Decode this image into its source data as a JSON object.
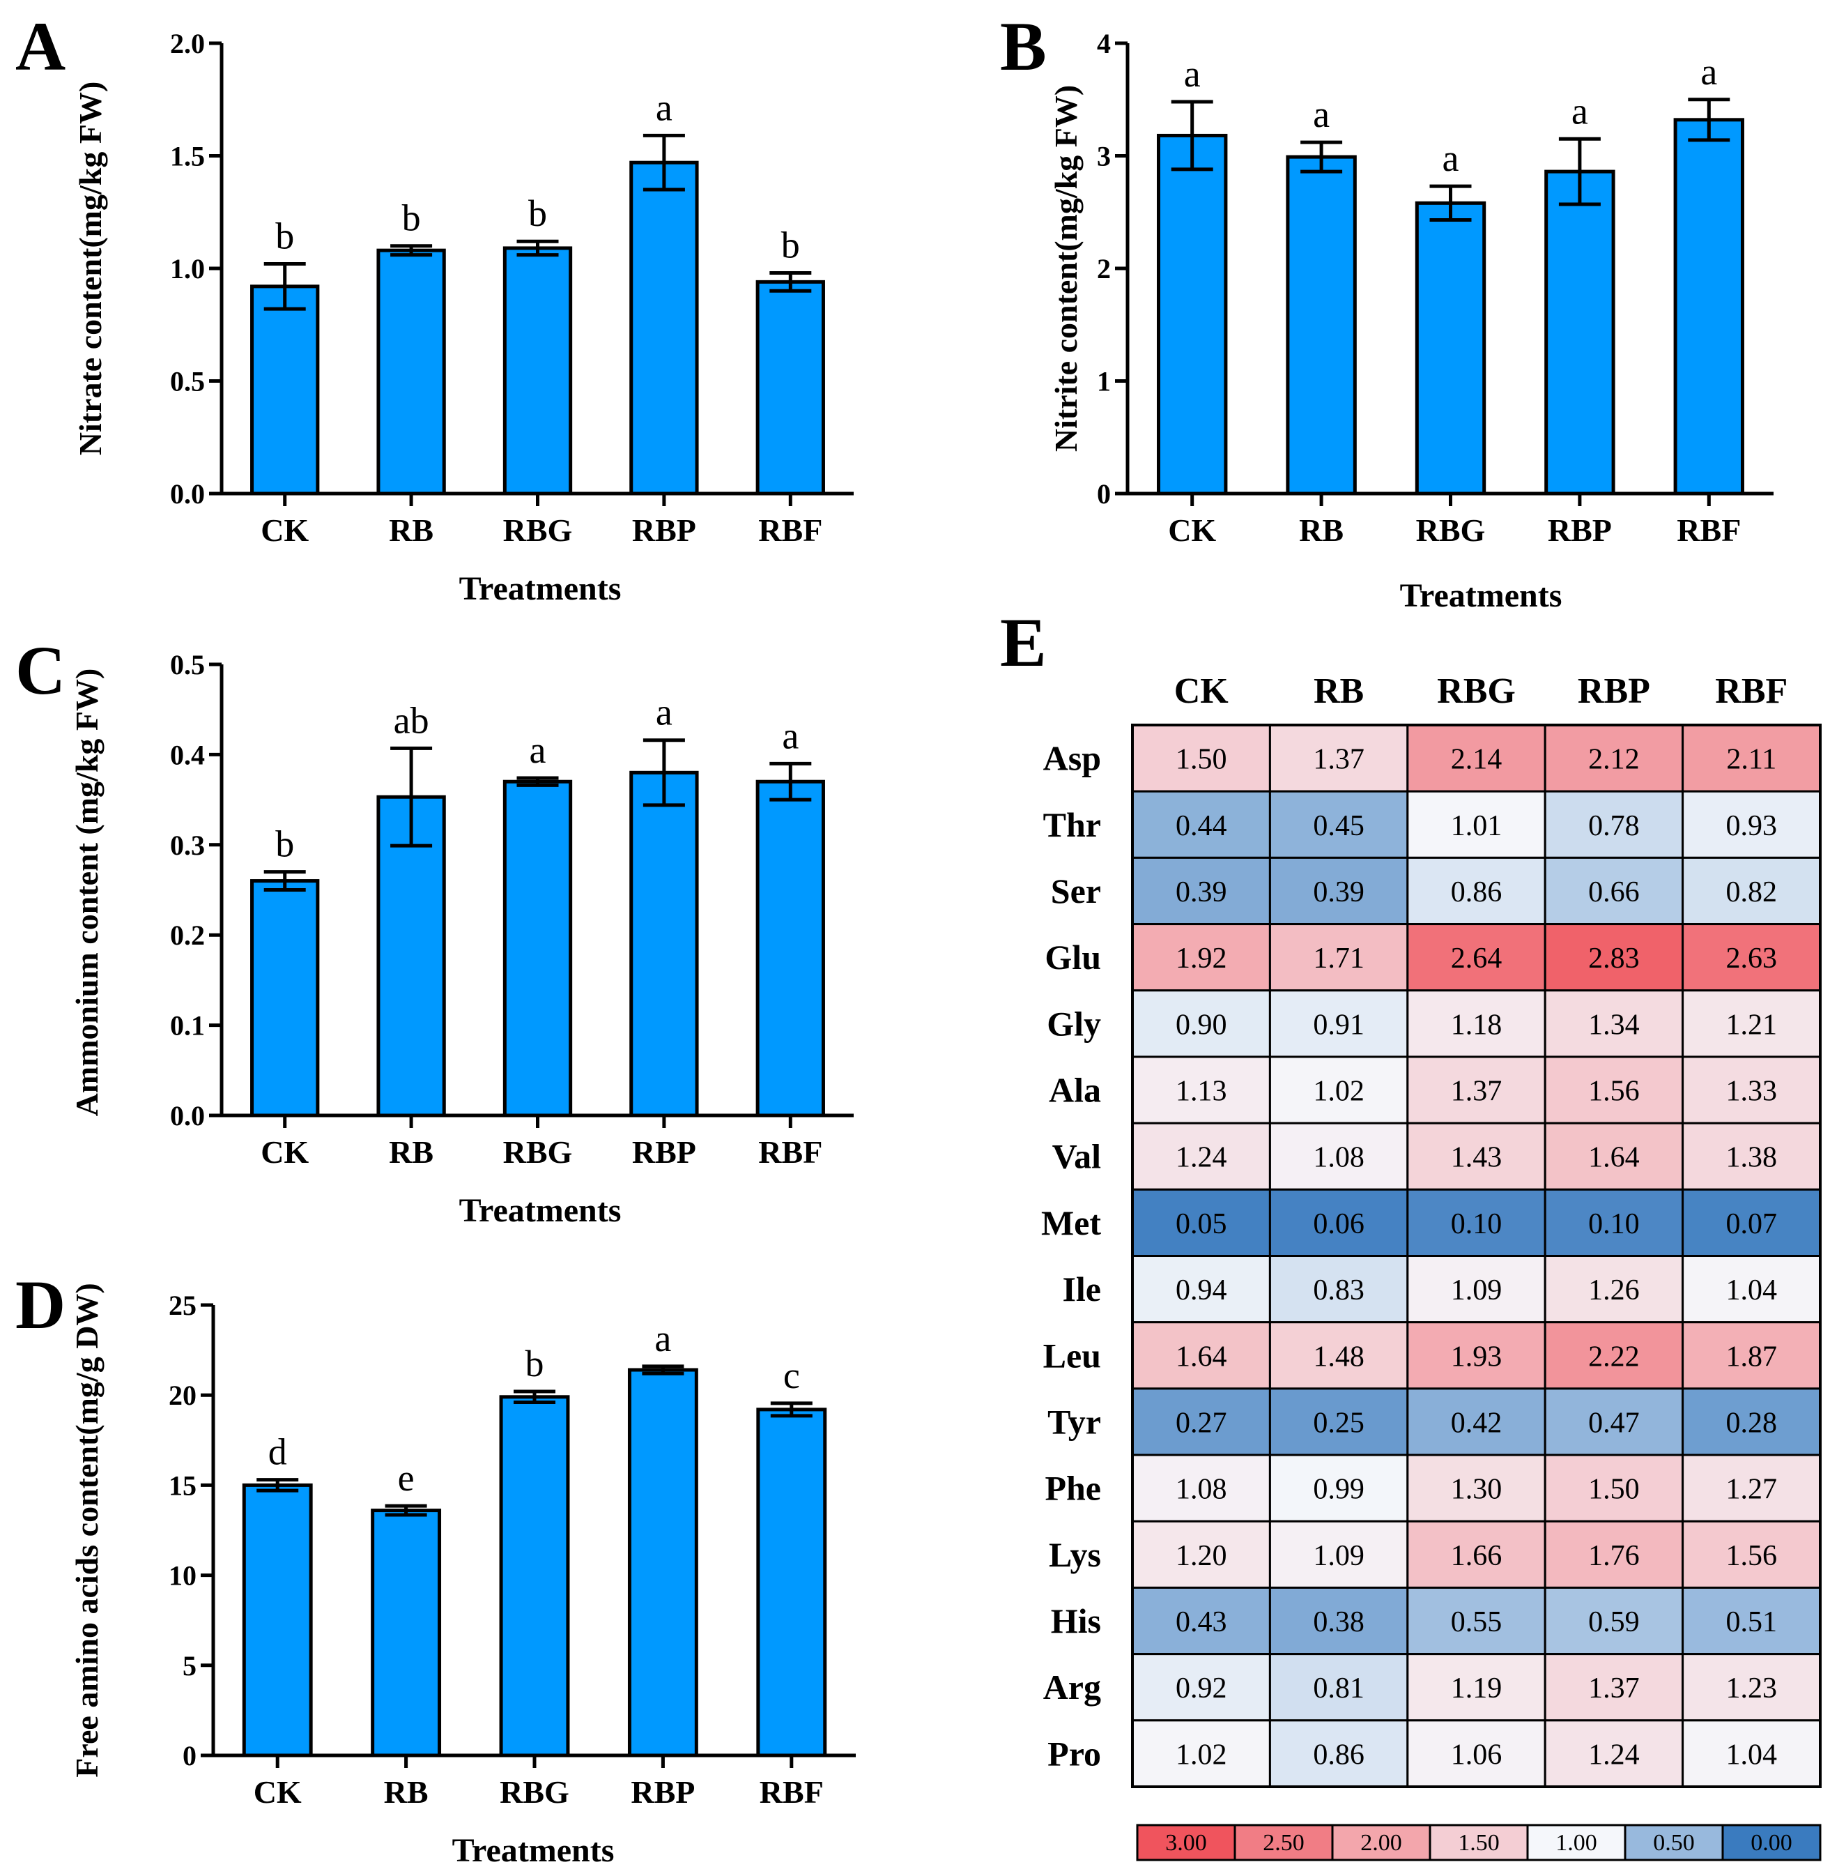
{
  "chart_data": [
    {
      "panel": "A",
      "type": "bar",
      "categories": [
        "CK",
        "RB",
        "RBG",
        "RBP",
        "RBF"
      ],
      "values": [
        0.92,
        1.08,
        1.09,
        1.47,
        0.94
      ],
      "errors": [
        0.1,
        0.02,
        0.03,
        0.12,
        0.04
      ],
      "significance": [
        "b",
        "b",
        "b",
        "a",
        "b"
      ],
      "xlabel": "Treatments",
      "ylabel": "Nitrate content(mg/kg FW)",
      "ylim": [
        0,
        2.0
      ],
      "yticks": [
        "0.0",
        "0.5",
        "1.0",
        "1.5",
        "2.0"
      ],
      "bar_color": "#0099ff"
    },
    {
      "panel": "B",
      "type": "bar",
      "categories": [
        "CK",
        "RB",
        "RBG",
        "RBP",
        "RBF"
      ],
      "values": [
        3.18,
        2.99,
        2.58,
        2.86,
        3.32
      ],
      "errors": [
        0.3,
        0.13,
        0.15,
        0.29,
        0.18
      ],
      "significance": [
        "a",
        "a",
        "a",
        "a",
        "a"
      ],
      "xlabel": "Treatments",
      "ylabel": "Nitrite content(mg/kg FW)",
      "ylim": [
        0,
        4
      ],
      "yticks": [
        "0",
        "1",
        "2",
        "3",
        "4"
      ],
      "bar_color": "#0099ff"
    },
    {
      "panel": "C",
      "type": "bar",
      "categories": [
        "CK",
        "RB",
        "RBG",
        "RBP",
        "RBF"
      ],
      "values": [
        0.26,
        0.353,
        0.37,
        0.38,
        0.37
      ],
      "errors": [
        0.01,
        0.054,
        0.004,
        0.036,
        0.02
      ],
      "significance": [
        "b",
        "ab",
        "a",
        "a",
        "a"
      ],
      "xlabel": "Treatments",
      "ylabel": "Ammonium content (mg/kg FW)",
      "ylim": [
        0,
        0.5
      ],
      "yticks": [
        "0.0",
        "0.1",
        "0.2",
        "0.3",
        "0.4",
        "0.5"
      ],
      "bar_color": "#0099ff"
    },
    {
      "panel": "D",
      "type": "bar",
      "categories": [
        "CK",
        "RB",
        "RBG",
        "RBP",
        "RBF"
      ],
      "values": [
        15.0,
        13.6,
        19.9,
        21.4,
        19.2
      ],
      "errors": [
        0.3,
        0.25,
        0.3,
        0.2,
        0.35
      ],
      "significance": [
        "d",
        "e",
        "b",
        "a",
        "c"
      ],
      "xlabel": "Treatments",
      "ylabel": "Free amino acids content(mg/g DW)",
      "ylim": [
        0,
        25
      ],
      "yticks": [
        "0",
        "5",
        "10",
        "15",
        "20",
        "25"
      ],
      "bar_color": "#0099ff"
    },
    {
      "panel": "E",
      "type": "heatmap",
      "columns": [
        "CK",
        "RB",
        "RBG",
        "RBP",
        "RBF"
      ],
      "rows": [
        "Asp",
        "Thr",
        "Ser",
        "Glu",
        "Gly",
        "Ala",
        "Val",
        "Met",
        "Ile",
        "Leu",
        "Tyr",
        "Phe",
        "Lys",
        "His",
        "Arg",
        "Pro"
      ],
      "values": [
        [
          "1.50",
          "1.37",
          "2.14",
          "2.12",
          "2.11"
        ],
        [
          "0.44",
          "0.45",
          "1.01",
          "0.78",
          "0.93"
        ],
        [
          "0.39",
          "0.39",
          "0.86",
          "0.66",
          "0.82"
        ],
        [
          "1.92",
          "1.71",
          "2.64",
          "2.83",
          "2.63"
        ],
        [
          "0.90",
          "0.91",
          "1.18",
          "1.34",
          "1.21"
        ],
        [
          "1.13",
          "1.02",
          "1.37",
          "1.56",
          "1.33"
        ],
        [
          "1.24",
          "1.08",
          "1.43",
          "1.64",
          "1.38"
        ],
        [
          "0.05",
          "0.06",
          "0.10",
          "0.10",
          "0.07"
        ],
        [
          "0.94",
          "0.83",
          "1.09",
          "1.26",
          "1.04"
        ],
        [
          "1.64",
          "1.48",
          "1.93",
          "2.22",
          "1.87"
        ],
        [
          "0.27",
          "0.25",
          "0.42",
          "0.47",
          "0.28"
        ],
        [
          "1.08",
          "0.99",
          "1.30",
          "1.50",
          "1.27"
        ],
        [
          "1.20",
          "1.09",
          "1.66",
          "1.76",
          "1.56"
        ],
        [
          "0.43",
          "0.38",
          "0.55",
          "0.59",
          "0.51"
        ],
        [
          "0.92",
          "0.81",
          "1.19",
          "1.37",
          "1.23"
        ],
        [
          "1.02",
          "0.86",
          "1.06",
          "1.24",
          "1.04"
        ]
      ],
      "legend": [
        "3.00",
        "2.50",
        "2.00",
        "1.50",
        "1.00",
        "0.50",
        "0.00"
      ],
      "color_scale": {
        "low": "#3a7bbf",
        "mid": "#f5f7fb",
        "high": "#f0545d",
        "low_value": 0,
        "mid_value": 1.0,
        "high_value": 3.0
      }
    }
  ]
}
